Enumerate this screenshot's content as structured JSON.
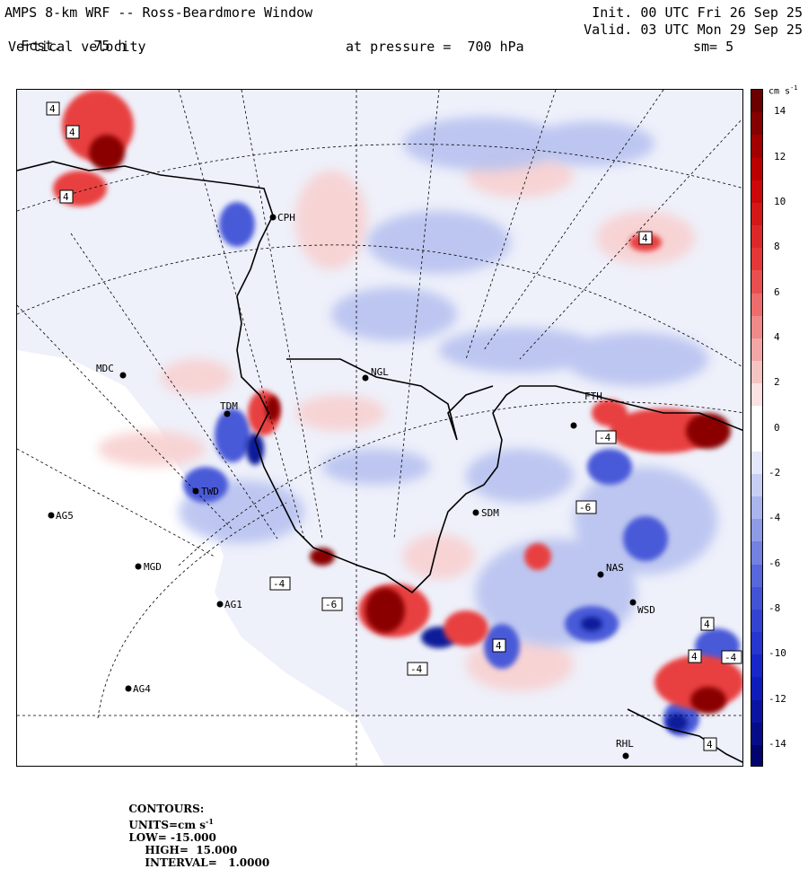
{
  "header": {
    "title": "AMPS 8-km WRF -- Ross-Beardmore Window",
    "fcst_label": "Fcst.",
    "fcst_value": "75 h",
    "variable": "Vertical velocity",
    "init": "Init. 00 UTC Fri 26 Sep 25",
    "valid": "Valid. 03 UTC Mon 29 Sep 25",
    "pressure_text": "at pressure =  700 hPa",
    "smoothing": "sm= 5"
  },
  "colorbar": {
    "units": "cm s",
    "units_exp": "-1",
    "ticks": [
      "14",
      "12",
      "10",
      "8",
      "6",
      "4",
      "2",
      "0",
      "-2",
      "-4",
      "-6",
      "-8",
      "-10",
      "-12",
      "-14"
    ],
    "tick_values": [
      14,
      12,
      10,
      8,
      6,
      4,
      2,
      0,
      -2,
      -4,
      -6,
      -8,
      -10,
      -12,
      -14
    ],
    "range": [
      -15,
      15
    ],
    "colors": {
      "max_positive": "#5c0000",
      "strong_positive": "#c80000",
      "positive": "#e84040",
      "weak_positive": "#f4b4b4",
      "near_zero": "#ffffff",
      "weak_negative": "#b8c2f0",
      "negative": "#4a5ad8",
      "strong_negative": "#1020c8",
      "max_negative": "#000060"
    }
  },
  "stations": [
    "CPH",
    "MDC",
    "NGL",
    "TDM",
    "TWD",
    "AG5",
    "MGD",
    "AG1",
    "AG4",
    "SDM",
    "FTH",
    "NAS",
    "WSD",
    "RHL"
  ],
  "contour_labels": [
    "4",
    "4",
    "4",
    "4",
    "4",
    "4",
    "4",
    "4",
    "-4",
    "-4",
    "-4",
    "-4",
    "-6",
    "-6"
  ],
  "footer": {
    "contours": "CONTOURS:",
    "units_label": "UNITS=cm s",
    "units_exp": "-1",
    "low": "LOW= -15.000",
    "high": "HIGH=  15.000",
    "interval": "INTERVAL=   1.0000"
  }
}
